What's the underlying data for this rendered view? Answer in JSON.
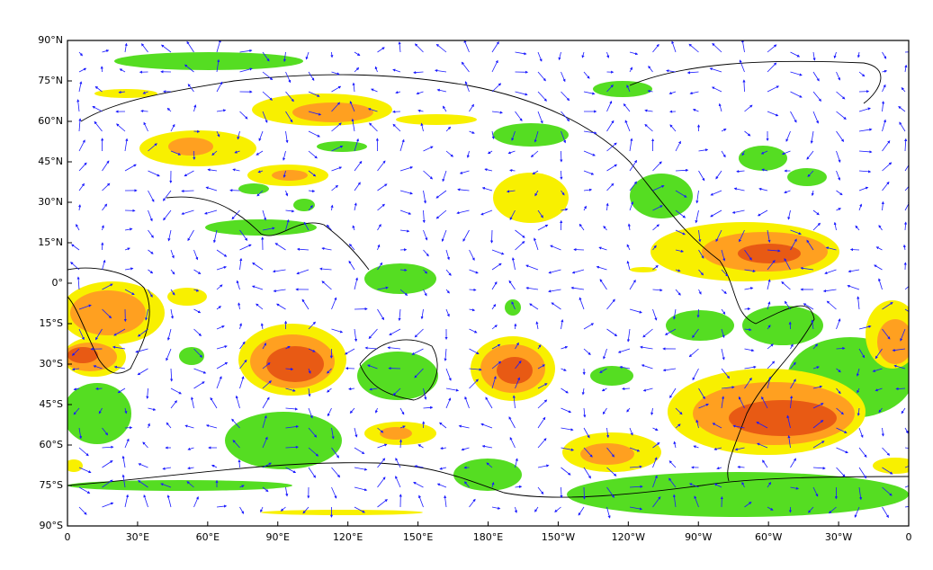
{
  "map": {
    "x_labels": [
      "0",
      "30°E",
      "60°E",
      "90°E",
      "120°E",
      "150°E",
      "180°E",
      "150°W",
      "120°W",
      "90°W",
      "60°W",
      "30°W",
      "0"
    ],
    "y_labels": [
      "90°N",
      "75°N",
      "60°N",
      "45°N",
      "30°N",
      "15°N",
      "0°",
      "15°S",
      "30°S",
      "45°S",
      "60°S",
      "75°S",
      "90°S"
    ]
  }
}
